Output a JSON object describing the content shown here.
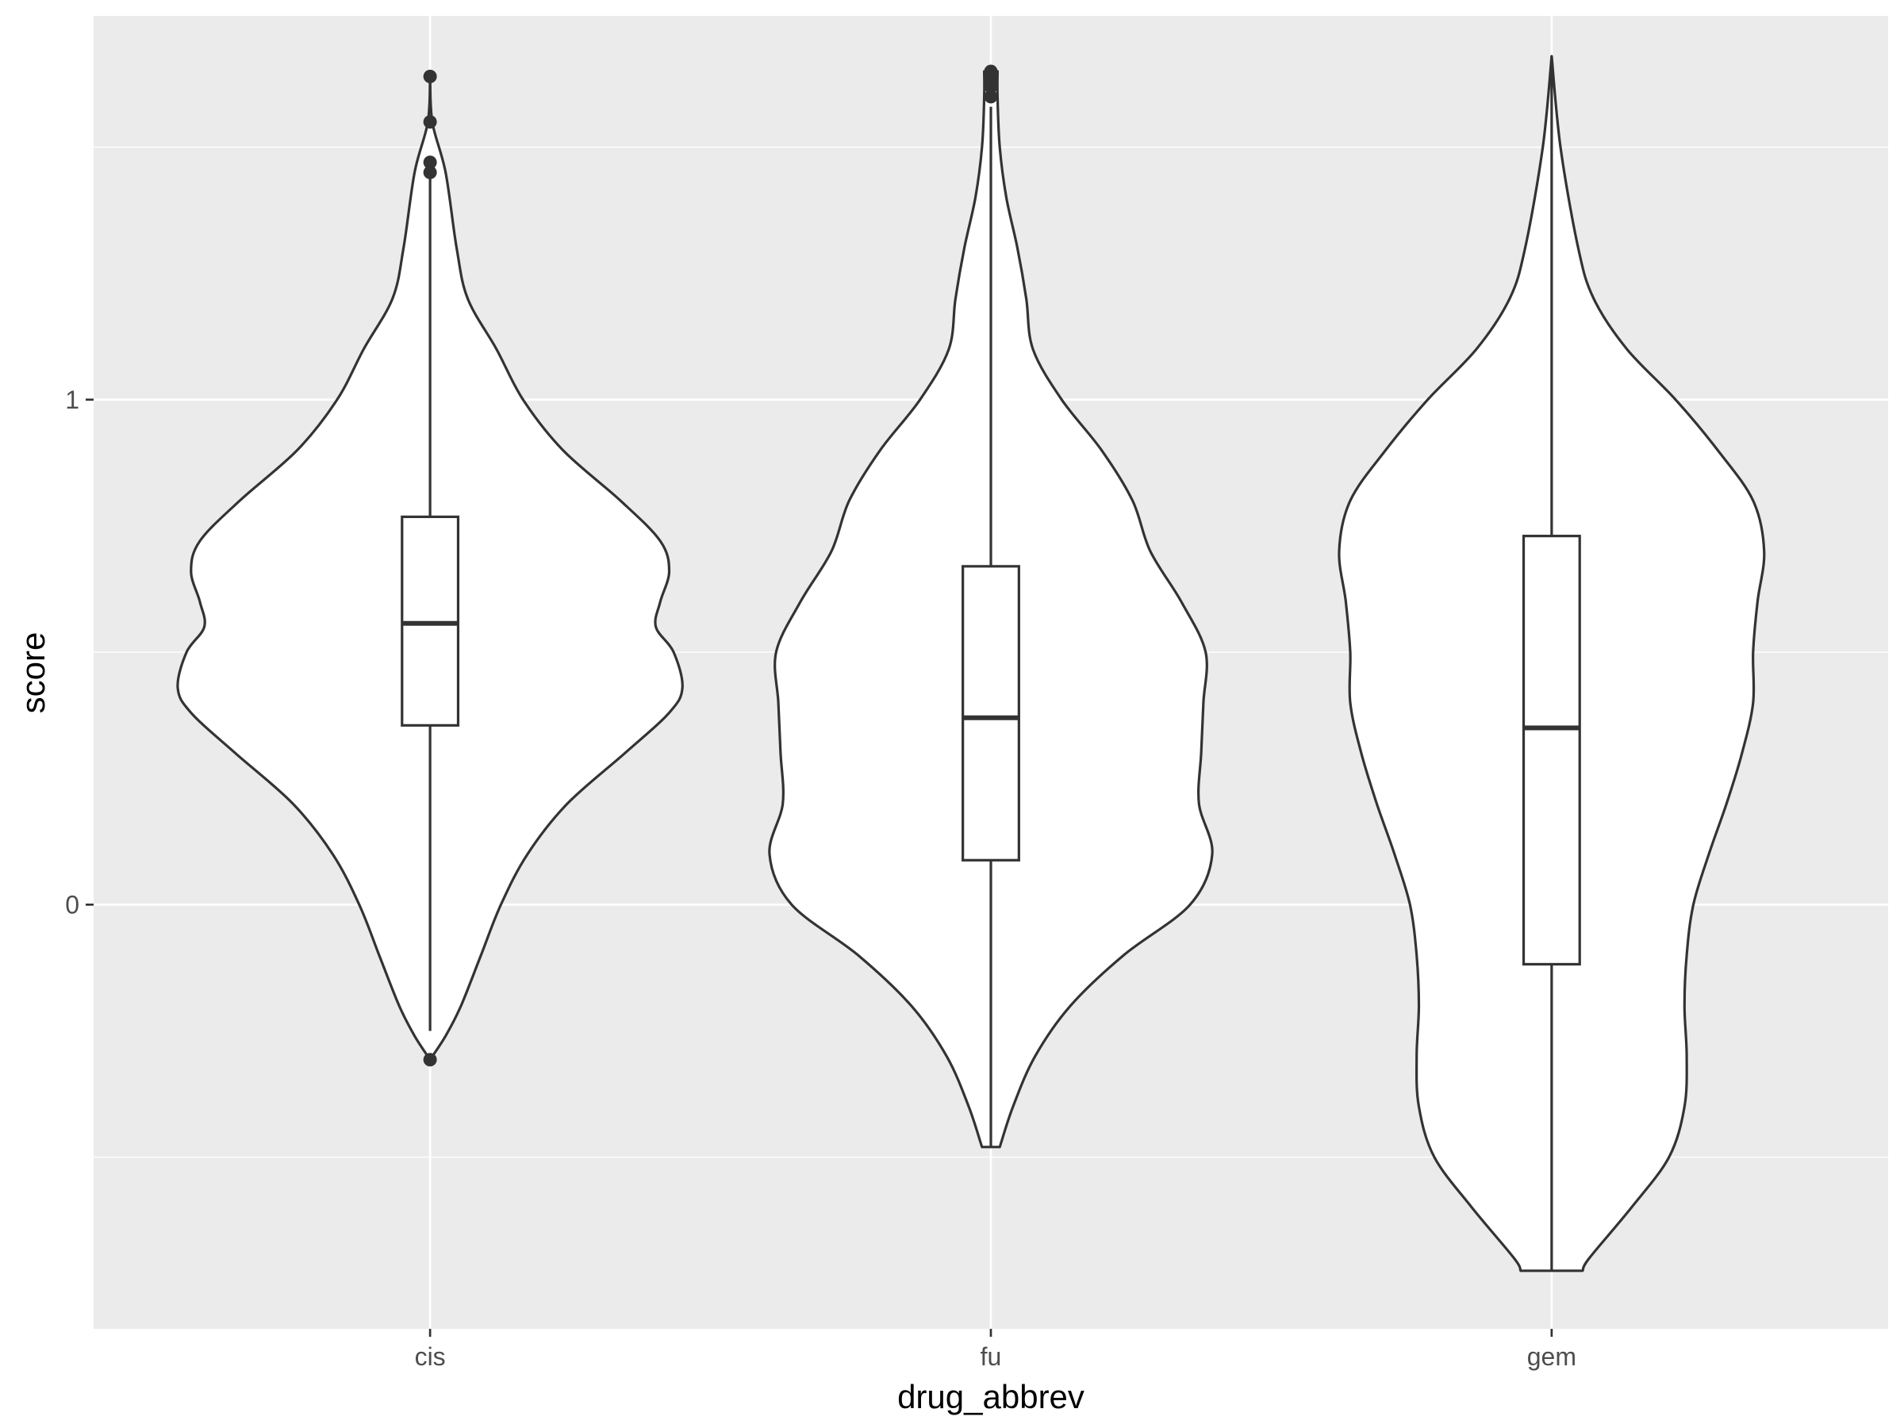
{
  "chart_data": {
    "type": "violin",
    "xlabel": "drug_abbrev",
    "ylabel": "score",
    "categories": [
      "cis",
      "fu",
      "gem"
    ],
    "ylim": [
      -0.84,
      1.76
    ],
    "y_ticks": [
      0,
      1
    ],
    "y_minor_gridlines": [
      -0.5,
      0.5,
      1.5
    ],
    "grid": true,
    "colors": {
      "panel_background": "#ebebeb",
      "grid_line": "#ffffff",
      "outline": "#333333",
      "violin_fill": "#ffffff",
      "box_fill": "#ffffff"
    },
    "series": [
      {
        "category": "cis",
        "box": {
          "q1": 0.355,
          "median": 0.557,
          "q3": 0.768,
          "whisker_low": -0.25,
          "whisker_high": 1.45
        },
        "outliers": [
          1.64,
          1.55,
          1.47,
          1.45,
          -0.307
        ],
        "violin": [
          [
            1.64,
            0.0
          ],
          [
            1.55,
            0.005
          ],
          [
            1.45,
            0.035
          ],
          [
            1.3,
            0.06
          ],
          [
            1.2,
            0.085
          ],
          [
            1.1,
            0.15
          ],
          [
            1.0,
            0.21
          ],
          [
            0.9,
            0.3
          ],
          [
            0.8,
            0.43
          ],
          [
            0.72,
            0.52
          ],
          [
            0.66,
            0.54
          ],
          [
            0.6,
            0.52
          ],
          [
            0.55,
            0.51
          ],
          [
            0.5,
            0.55
          ],
          [
            0.43,
            0.57
          ],
          [
            0.38,
            0.54
          ],
          [
            0.3,
            0.44
          ],
          [
            0.2,
            0.31
          ],
          [
            0.1,
            0.22
          ],
          [
            0.0,
            0.16
          ],
          [
            -0.1,
            0.115
          ],
          [
            -0.2,
            0.07
          ],
          [
            -0.26,
            0.035
          ],
          [
            -0.307,
            0.0
          ]
        ]
      },
      {
        "category": "fu",
        "box": {
          "q1": 0.088,
          "median": 0.37,
          "q3": 0.67,
          "whisker_low": -0.48,
          "whisker_high": 1.58
        },
        "outliers": [
          1.6,
          1.62,
          1.63,
          1.64,
          1.65
        ],
        "violin": [
          [
            1.65,
            0.015
          ],
          [
            1.6,
            0.015
          ],
          [
            1.5,
            0.02
          ],
          [
            1.4,
            0.035
          ],
          [
            1.3,
            0.06
          ],
          [
            1.2,
            0.08
          ],
          [
            1.1,
            0.095
          ],
          [
            1.0,
            0.16
          ],
          [
            0.9,
            0.25
          ],
          [
            0.8,
            0.32
          ],
          [
            0.7,
            0.36
          ],
          [
            0.6,
            0.43
          ],
          [
            0.5,
            0.485
          ],
          [
            0.4,
            0.48
          ],
          [
            0.3,
            0.475
          ],
          [
            0.2,
            0.47
          ],
          [
            0.1,
            0.5
          ],
          [
            0.0,
            0.45
          ],
          [
            -0.1,
            0.3
          ],
          [
            -0.2,
            0.18
          ],
          [
            -0.3,
            0.1
          ],
          [
            -0.4,
            0.05
          ],
          [
            -0.48,
            0.02
          ]
        ]
      },
      {
        "category": "gem",
        "box": {
          "q1": -0.118,
          "median": 0.35,
          "q3": 0.73,
          "whisker_low": -0.725,
          "whisker_high": 1.68
        },
        "outliers": [],
        "violin": [
          [
            1.68,
            0.0
          ],
          [
            1.5,
            0.02
          ],
          [
            1.3,
            0.06
          ],
          [
            1.2,
            0.095
          ],
          [
            1.1,
            0.17
          ],
          [
            1.0,
            0.28
          ],
          [
            0.9,
            0.375
          ],
          [
            0.8,
            0.455
          ],
          [
            0.7,
            0.48
          ],
          [
            0.6,
            0.465
          ],
          [
            0.5,
            0.455
          ],
          [
            0.4,
            0.455
          ],
          [
            0.3,
            0.43
          ],
          [
            0.2,
            0.395
          ],
          [
            0.1,
            0.355
          ],
          [
            0.0,
            0.32
          ],
          [
            -0.1,
            0.305
          ],
          [
            -0.2,
            0.3
          ],
          [
            -0.3,
            0.305
          ],
          [
            -0.4,
            0.3
          ],
          [
            -0.5,
            0.265
          ],
          [
            -0.6,
            0.18
          ],
          [
            -0.7,
            0.085
          ],
          [
            -0.725,
            0.07
          ]
        ]
      }
    ]
  }
}
